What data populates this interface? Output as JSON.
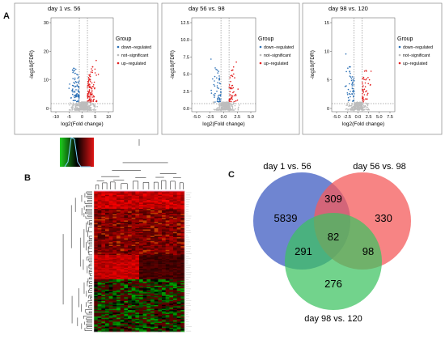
{
  "panel_labels": {
    "a": "A",
    "b": "B",
    "c": "C"
  },
  "colors": {
    "down": "#2a6fb5",
    "up": "#e21f1f",
    "not": "#bdbdbd",
    "venn_blue": "#5670c9",
    "venn_red": "#f45b5b",
    "venn_green": "#3cc25f"
  },
  "volcano": {
    "legend_title": "Group",
    "legend_items": [
      "down−regulated",
      "not−significant",
      "up−regulated"
    ],
    "y_label": "-log10(FDR)",
    "x_label": "log2(Fold change)",
    "plots": [
      {
        "title": "day 1 vs. 56",
        "xticks": [
          "-10",
          "-5",
          "0",
          "5",
          "10"
        ],
        "yticks": [
          "0",
          "10",
          "20",
          "30"
        ]
      },
      {
        "title": "day 56 vs. 98",
        "xticks": [
          "-5.0",
          "-2.5",
          "0.0",
          "2.5",
          "5.0"
        ],
        "yticks": [
          "0.0",
          "2.5",
          "5.0",
          "7.5",
          "10.0",
          "12.5"
        ]
      },
      {
        "title": "day 98 vs. 120",
        "xticks": [
          "-5.0",
          "-2.5",
          "0.0",
          "2.5",
          "5.0",
          "7.5"
        ],
        "yticks": [
          "0",
          "5",
          "10",
          "15"
        ]
      }
    ]
  },
  "venn": {
    "sets": [
      "day 1 vs. 56",
      "day 56 vs. 98",
      "day 98 vs. 120"
    ],
    "regions": {
      "only_1": "5839",
      "only_56_98": "330",
      "only_98_120": "276",
      "a_b": "309",
      "a_c": "291",
      "b_c": "98",
      "all": "82"
    }
  }
}
